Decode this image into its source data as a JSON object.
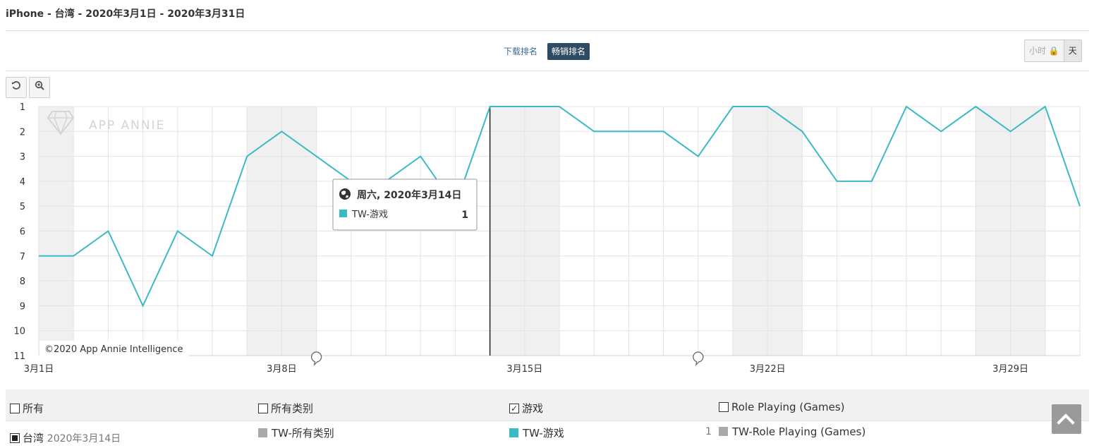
{
  "header": {
    "title": "iPhone - 台湾 - 2020年3月1日 - 2020年3月31日"
  },
  "tabs": {
    "downloads": "下载排名",
    "grossing": "畅销排名"
  },
  "granularity": {
    "hour": "小时 🔒",
    "day": "天"
  },
  "toolbar": {
    "reset_icon": "reset-icon",
    "zoom_icon": "zoom-icon"
  },
  "watermark": "APP ANNIE",
  "copyright": "©2020 App Annie Intelligence",
  "tooltip": {
    "date": "周六, 2020年3月14日",
    "series": "TW-游戏",
    "value": "1"
  },
  "chart_data": {
    "type": "line",
    "y_inverted": true,
    "ylim": [
      1,
      11
    ],
    "y_ticks": [
      "1",
      "2",
      "3",
      "4",
      "5",
      "6",
      "7",
      "8",
      "9",
      "10",
      "11"
    ],
    "x_ticks": [
      {
        "day": 1,
        "label": "3月1日"
      },
      {
        "day": 8,
        "label": "3月8日"
      },
      {
        "day": 15,
        "label": "3月15日"
      },
      {
        "day": 22,
        "label": "3月22日"
      },
      {
        "day": 29,
        "label": "3月29日"
      }
    ],
    "x": [
      1,
      2,
      3,
      4,
      5,
      6,
      7,
      8,
      9,
      10,
      11,
      12,
      13,
      14,
      15,
      16,
      17,
      18,
      19,
      20,
      21,
      22,
      23,
      24,
      25,
      26,
      27,
      28,
      29,
      30,
      31
    ],
    "series": [
      {
        "name": "TW-游戏",
        "color": "#3bb9c4",
        "values": [
          7,
          7,
          6,
          9,
          6,
          7,
          3,
          2,
          3,
          4,
          4,
          3,
          5,
          1,
          1,
          1,
          2,
          2,
          2,
          3,
          1,
          1,
          2,
          4,
          4,
          1,
          2,
          1,
          2,
          1,
          5
        ]
      }
    ],
    "weekend_days": [
      1,
      7,
      8,
      14,
      15,
      21,
      22,
      28,
      29
    ],
    "hover_day": 14,
    "event_marker_days": [
      9,
      20
    ]
  },
  "legend": {
    "row1": [
      {
        "label": "所有",
        "checked": false
      },
      {
        "label": "所有类别",
        "checked": false
      },
      {
        "label": "游戏",
        "checked": true
      },
      {
        "label": "Role Playing (Games)",
        "checked": false
      }
    ],
    "row2": {
      "country": "台湾",
      "date": "2020年3月14日",
      "cells": [
        {
          "label": "TW-所有类别",
          "value": "",
          "color": "#aaaaaa"
        },
        {
          "label": "TW-游戏",
          "value": "1",
          "color": "#3bb9c4"
        },
        {
          "label": "TW-Role Playing (Games)",
          "value": "",
          "color": "#aaaaaa"
        }
      ]
    }
  }
}
